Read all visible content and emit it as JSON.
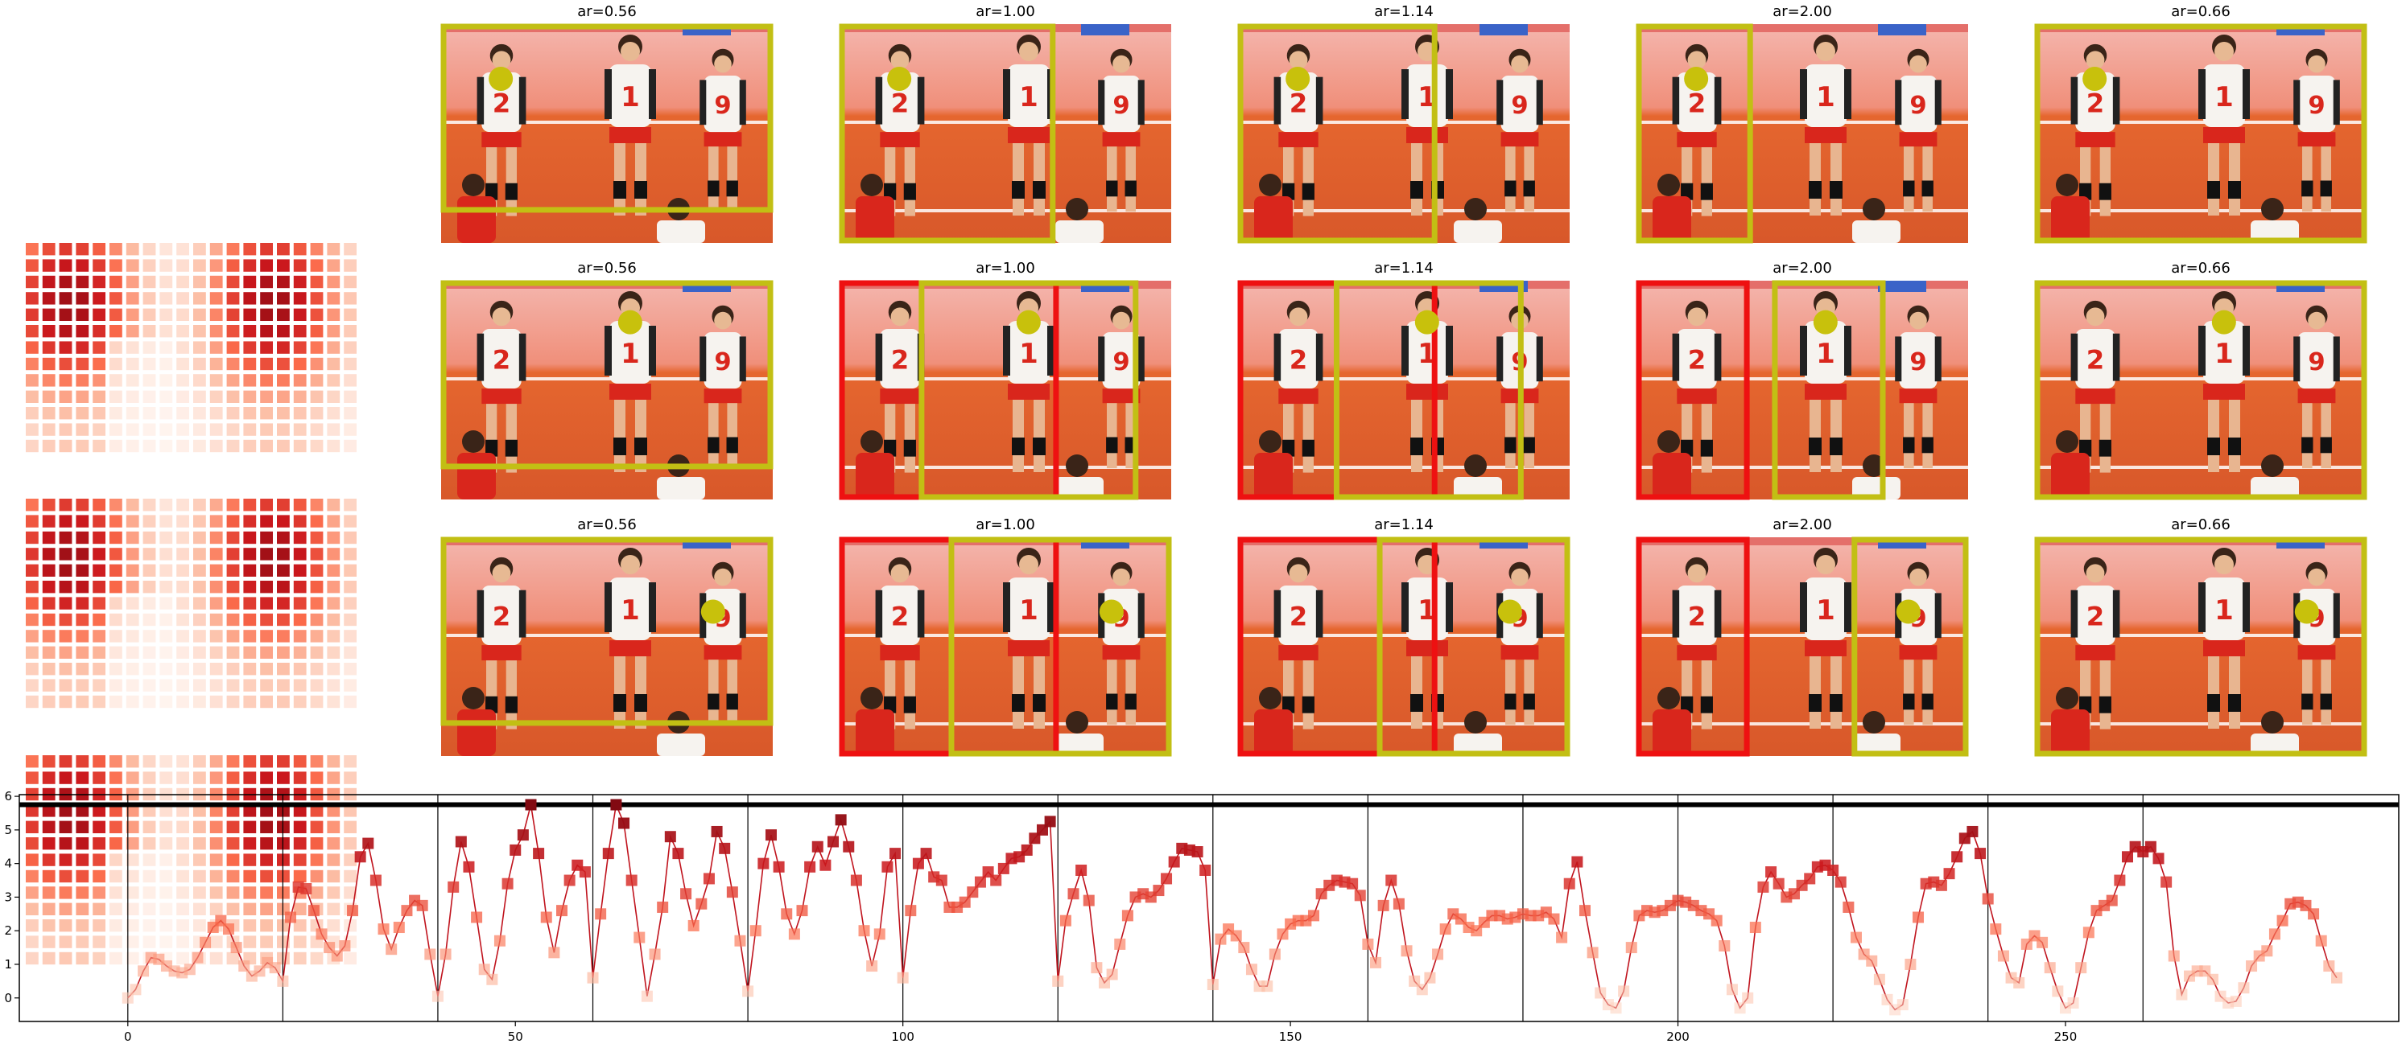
{
  "colors": {
    "crop_box": "#c2bf14",
    "rejected_box": "#ee1111",
    "marker": "#c8c10c",
    "line": "#c0141e",
    "heat_low": "#fff5f0",
    "heat_high": "#a50f15",
    "court_orange": "#e5662f",
    "wall_pink": "#f4b6ae",
    "jersey_white": "#f6f3ef",
    "jersey_red": "#d9261c"
  },
  "grid": {
    "rows": [
      {
        "row": 1,
        "panels": [
          {
            "title": "ar=0.56",
            "box_fill": "#c2bf14"
          },
          {
            "title": "ar=1.00"
          },
          {
            "title": "ar=1.14"
          },
          {
            "title": "ar=2.00"
          },
          {
            "title": "ar=0.66"
          }
        ]
      },
      {
        "row": 2,
        "panels": [
          {
            "title": "ar=0.56"
          },
          {
            "title": "ar=1.00"
          },
          {
            "title": "ar=1.14"
          },
          {
            "title": "ar=2.00"
          },
          {
            "title": "ar=0.66"
          }
        ]
      },
      {
        "row": 3,
        "panels": [
          {
            "title": "ar=0.56"
          },
          {
            "title": "ar=1.00"
          },
          {
            "title": "ar=1.14"
          },
          {
            "title": "ar=2.00"
          },
          {
            "title": "ar=0.66"
          }
        ]
      }
    ],
    "jersey_numbers": [
      "2",
      "1",
      "9"
    ]
  },
  "chart_data": {
    "type": "line",
    "title": "",
    "xlabel": "",
    "ylabel": "",
    "xlim": [
      -14,
      293
    ],
    "ylim": [
      -0.7,
      6.05
    ],
    "xticks": [
      0,
      50,
      100,
      150,
      200,
      250
    ],
    "yticks": [
      0,
      1,
      2,
      3,
      4,
      5,
      6
    ],
    "threshold_line": 5.75,
    "segment_boundaries": [
      0,
      20,
      40,
      60,
      80,
      100,
      120,
      140,
      160,
      180,
      200,
      220,
      240,
      260
    ],
    "values": [
      0.0,
      0.25,
      0.8,
      1.2,
      1.15,
      0.95,
      0.8,
      0.75,
      0.85,
      1.2,
      1.65,
      2.1,
      2.3,
      2.05,
      1.5,
      0.95,
      0.65,
      0.8,
      1.05,
      0.9,
      0.5,
      2.4,
      3.3,
      3.25,
      2.6,
      1.9,
      1.5,
      1.25,
      1.55,
      2.6,
      4.2,
      4.6,
      3.5,
      2.05,
      1.45,
      2.1,
      2.6,
      2.9,
      2.75,
      1.3,
      0.05,
      1.3,
      3.3,
      4.65,
      3.9,
      2.4,
      0.85,
      0.55,
      1.7,
      3.4,
      4.4,
      4.85,
      5.75,
      4.3,
      2.4,
      1.35,
      2.6,
      3.5,
      3.95,
      3.75,
      0.6,
      2.5,
      4.3,
      5.75,
      5.2,
      3.5,
      1.8,
      0.05,
      1.3,
      2.7,
      4.8,
      4.3,
      3.1,
      2.15,
      2.8,
      3.55,
      4.95,
      4.45,
      3.15,
      1.7,
      0.2,
      2.0,
      4.0,
      4.85,
      3.9,
      2.5,
      1.9,
      2.6,
      3.9,
      4.5,
      3.95,
      4.65,
      5.3,
      4.5,
      3.5,
      2.0,
      0.95,
      1.9,
      3.9,
      4.3,
      0.6,
      2.6,
      4.0,
      4.3,
      3.6,
      3.5,
      2.7,
      2.7,
      2.85,
      3.15,
      3.45,
      3.75,
      3.5,
      3.85,
      4.15,
      4.2,
      4.4,
      4.75,
      5.0,
      5.25,
      0.5,
      2.3,
      3.1,
      3.8,
      2.9,
      0.9,
      0.45,
      0.7,
      1.6,
      2.45,
      3.0,
      3.1,
      3.0,
      3.2,
      3.55,
      4.05,
      4.45,
      4.4,
      4.35,
      3.8,
      0.4,
      1.75,
      2.05,
      1.85,
      1.5,
      0.85,
      0.35,
      0.35,
      1.3,
      1.9,
      2.2,
      2.3,
      2.3,
      2.45,
      3.1,
      3.35,
      3.5,
      3.45,
      3.4,
      3.05,
      1.6,
      1.05,
      2.75,
      3.5,
      2.8,
      1.4,
      0.5,
      0.25,
      0.6,
      1.3,
      2.05,
      2.5,
      2.35,
      2.1,
      2.0,
      2.25,
      2.45,
      2.45,
      2.35,
      2.4,
      2.5,
      2.45,
      2.45,
      2.55,
      2.35,
      1.8,
      3.4,
      4.05,
      2.6,
      1.35,
      0.15,
      -0.2,
      -0.3,
      0.2,
      1.5,
      2.45,
      2.6,
      2.55,
      2.6,
      2.75,
      2.9,
      2.85,
      2.75,
      2.6,
      2.5,
      2.3,
      1.55,
      0.25,
      -0.3,
      0.0,
      2.1,
      3.3,
      3.75,
      3.4,
      3.0,
      3.1,
      3.35,
      3.55,
      3.9,
      3.95,
      3.8,
      3.45,
      2.7,
      1.8,
      1.3,
      1.1,
      0.55,
      -0.05,
      -0.35,
      -0.2,
      1.0,
      2.4,
      3.4,
      3.45,
      3.35,
      3.7,
      4.2,
      4.75,
      4.95,
      4.3,
      2.95,
      2.05,
      1.25,
      0.6,
      0.45,
      1.6,
      1.85,
      1.65,
      0.9,
      0.2,
      -0.3,
      -0.15,
      0.9,
      1.95,
      2.6,
      2.75,
      2.9,
      3.5,
      4.2,
      4.5,
      4.35,
      4.5,
      4.15,
      3.45,
      1.25,
      0.1,
      0.65,
      0.8,
      0.8,
      0.55,
      0.05,
      -0.15,
      -0.1,
      0.3,
      0.95,
      1.25,
      1.4,
      1.9,
      2.3,
      2.8,
      2.85,
      2.75,
      2.5,
      1.7,
      0.95,
      0.6
    ]
  }
}
